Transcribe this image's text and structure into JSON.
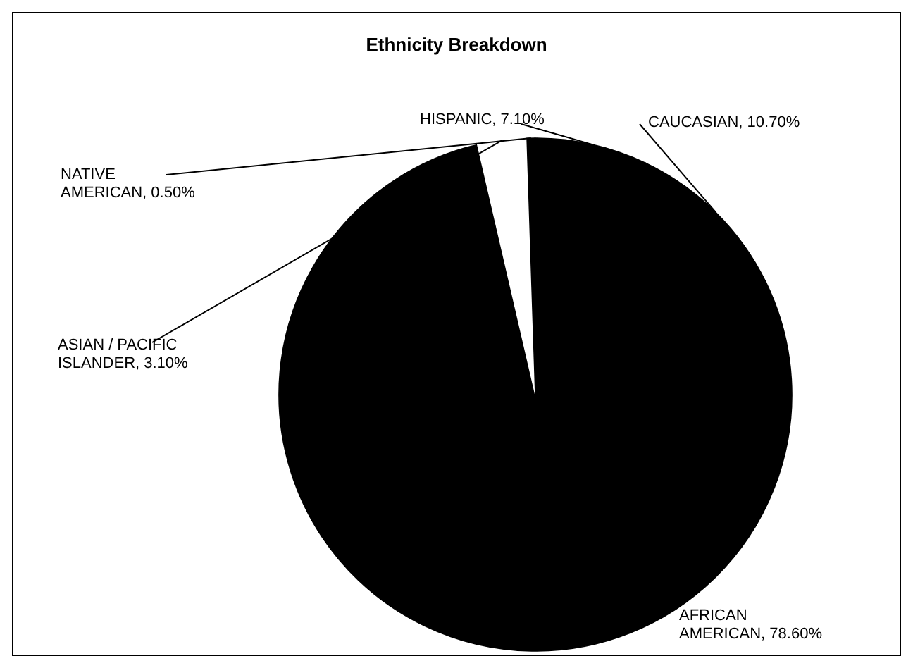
{
  "chart_data": {
    "type": "pie",
    "title": "Ethnicity Breakdown",
    "categories": [
      "AFRICAN AMERICAN",
      "ASIAN / PACIFIC ISLANDER",
      "NATIVE AMERICAN",
      "HISPANIC",
      "CAUCASIAN"
    ],
    "values": [
      78.6,
      3.1,
      0.5,
      7.1,
      10.7
    ],
    "value_labels": [
      "78.60%",
      "3.10%",
      "0.50%",
      "7.10%",
      "10.70%"
    ],
    "colors": [
      "#000000",
      "#ffffff",
      "#000000",
      "#000000",
      "#000000"
    ],
    "legend": false
  }
}
